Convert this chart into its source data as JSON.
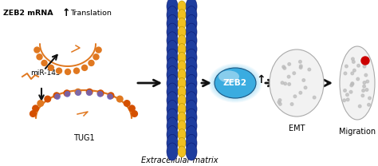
{
  "background_color": "#ffffff",
  "figsize": [
    4.74,
    2.08
  ],
  "dpi": 100,
  "zeb2_mrna_text": "ZEB2 mRNA",
  "up_arrow": "↑",
  "translation_text": "Translation",
  "mir145_text": "miR-145",
  "tug1_text": "TUG1",
  "zeb2_label": "ZEB2",
  "emt_text": "EMT",
  "migration_text": "Migration",
  "ecm_text": "Extracellular matrix",
  "membrane_blue": "#1e3d9e",
  "membrane_yellow": "#f0c020",
  "arrow_color": "#111111",
  "orange_color": "#e07820",
  "orange_dot": "#d45000",
  "blue_dot": "#6666cc",
  "red_color": "#cc0000",
  "zeb2_fill": "#3aace0",
  "zeb2_edge": "#1a5580",
  "cell_fill": "#f2f2f2",
  "cell_edge": "#aaaaaa"
}
